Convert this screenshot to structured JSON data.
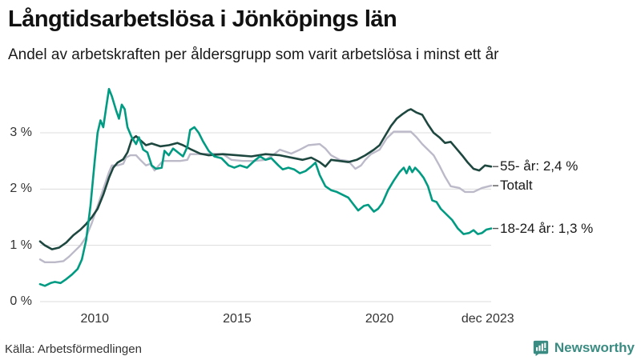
{
  "header": {
    "title": "Långtidsarbetslösa i Jönköpings län",
    "subtitle": "Andel av arbetskraften per åldersgrupp som varit arbetslösa i minst ett år"
  },
  "footer": {
    "source": "Källa: Arbetsförmedlingen",
    "brand": "Newsworthy",
    "brand_color": "#3a8c82"
  },
  "colors": {
    "grid": "#dcdcdc",
    "axis_text": "#333333",
    "label_text": "#1a1a1a",
    "background": "#ffffff"
  },
  "chart_data": {
    "type": "line",
    "title": "Långtidsarbetslösa i Jönköpings län",
    "subtitle": "Andel av arbetskraften per åldersgrupp som varit arbetslösa i minst ett år",
    "unit": "% av arbetskraften",
    "grid": true,
    "x_range": [
      2008.08,
      2023.92
    ],
    "y_range": [
      0,
      3.9
    ],
    "yticks": [
      {
        "label": "0 %",
        "value": 0
      },
      {
        "label": "1 %",
        "value": 1
      },
      {
        "label": "2 %",
        "value": 2
      },
      {
        "label": "3 %",
        "value": 3
      }
    ],
    "xticks": [
      {
        "label": "2010",
        "t": 2010
      },
      {
        "label": "2015",
        "t": 2015
      },
      {
        "label": "2020",
        "t": 2020
      },
      {
        "label": "dec 2023",
        "t": 2023.8
      }
    ],
    "series": [
      {
        "name": "Totalt",
        "end_label": "Totalt",
        "color": "#bcbac9",
        "stroke_width": 2.4,
        "points": [
          [
            2008.08,
            0.75
          ],
          [
            2008.25,
            0.7
          ],
          [
            2008.6,
            0.7
          ],
          [
            2008.9,
            0.72
          ],
          [
            2009.1,
            0.8
          ],
          [
            2009.3,
            0.9
          ],
          [
            2009.5,
            1.0
          ],
          [
            2009.7,
            1.15
          ],
          [
            2009.9,
            1.4
          ],
          [
            2010.1,
            1.7
          ],
          [
            2010.3,
            2.0
          ],
          [
            2010.5,
            2.3
          ],
          [
            2010.6,
            2.42
          ],
          [
            2010.8,
            2.42
          ],
          [
            2011.0,
            2.45
          ],
          [
            2011.1,
            2.56
          ],
          [
            2011.25,
            2.6
          ],
          [
            2011.45,
            2.6
          ],
          [
            2011.6,
            2.52
          ],
          [
            2011.8,
            2.42
          ],
          [
            2011.95,
            2.45
          ],
          [
            2012.1,
            2.33
          ],
          [
            2012.25,
            2.42
          ],
          [
            2012.4,
            2.5
          ],
          [
            2012.7,
            2.5
          ],
          [
            2013.0,
            2.5
          ],
          [
            2013.25,
            2.52
          ],
          [
            2013.35,
            2.62
          ],
          [
            2013.7,
            2.62
          ],
          [
            2014.1,
            2.63
          ],
          [
            2014.5,
            2.62
          ],
          [
            2014.8,
            2.52
          ],
          [
            2015.2,
            2.5
          ],
          [
            2015.6,
            2.5
          ],
          [
            2016.0,
            2.52
          ],
          [
            2016.3,
            2.62
          ],
          [
            2016.5,
            2.7
          ],
          [
            2016.9,
            2.63
          ],
          [
            2017.2,
            2.7
          ],
          [
            2017.5,
            2.78
          ],
          [
            2017.9,
            2.8
          ],
          [
            2018.1,
            2.72
          ],
          [
            2018.3,
            2.6
          ],
          [
            2018.6,
            2.52
          ],
          [
            2018.9,
            2.5
          ],
          [
            2019.15,
            2.36
          ],
          [
            2019.35,
            2.42
          ],
          [
            2019.5,
            2.52
          ],
          [
            2019.7,
            2.62
          ],
          [
            2020.0,
            2.7
          ],
          [
            2020.25,
            2.9
          ],
          [
            2020.5,
            3.02
          ],
          [
            2020.8,
            3.02
          ],
          [
            2021.1,
            3.02
          ],
          [
            2021.3,
            2.92
          ],
          [
            2021.5,
            2.8
          ],
          [
            2021.7,
            2.7
          ],
          [
            2021.9,
            2.6
          ],
          [
            2022.1,
            2.42
          ],
          [
            2022.3,
            2.22
          ],
          [
            2022.5,
            2.05
          ],
          [
            2022.8,
            2.02
          ],
          [
            2023.0,
            1.95
          ],
          [
            2023.3,
            1.95
          ],
          [
            2023.6,
            2.02
          ],
          [
            2023.92,
            2.06
          ]
        ]
      },
      {
        "name": "55- år",
        "end_label": "55- år: 2,4 %",
        "color": "#1d473f",
        "stroke_width": 2.6,
        "points": [
          [
            2008.08,
            1.07
          ],
          [
            2008.25,
            1.0
          ],
          [
            2008.5,
            0.93
          ],
          [
            2008.75,
            0.96
          ],
          [
            2009.0,
            1.05
          ],
          [
            2009.25,
            1.18
          ],
          [
            2009.5,
            1.28
          ],
          [
            2009.7,
            1.38
          ],
          [
            2009.9,
            1.5
          ],
          [
            2010.1,
            1.65
          ],
          [
            2010.3,
            1.9
          ],
          [
            2010.5,
            2.2
          ],
          [
            2010.65,
            2.38
          ],
          [
            2010.8,
            2.47
          ],
          [
            2011.0,
            2.53
          ],
          [
            2011.15,
            2.65
          ],
          [
            2011.3,
            2.88
          ],
          [
            2011.45,
            2.94
          ],
          [
            2011.6,
            2.87
          ],
          [
            2011.8,
            2.78
          ],
          [
            2012.0,
            2.81
          ],
          [
            2012.3,
            2.76
          ],
          [
            2012.6,
            2.78
          ],
          [
            2012.9,
            2.82
          ],
          [
            2013.1,
            2.78
          ],
          [
            2013.4,
            2.7
          ],
          [
            2013.7,
            2.63
          ],
          [
            2014.0,
            2.6
          ],
          [
            2014.5,
            2.62
          ],
          [
            2015.0,
            2.6
          ],
          [
            2015.5,
            2.58
          ],
          [
            2016.0,
            2.62
          ],
          [
            2016.5,
            2.6
          ],
          [
            2017.0,
            2.55
          ],
          [
            2017.3,
            2.52
          ],
          [
            2017.6,
            2.56
          ],
          [
            2017.9,
            2.48
          ],
          [
            2018.1,
            2.4
          ],
          [
            2018.3,
            2.52
          ],
          [
            2018.6,
            2.5
          ],
          [
            2018.9,
            2.48
          ],
          [
            2019.2,
            2.52
          ],
          [
            2019.5,
            2.6
          ],
          [
            2019.8,
            2.7
          ],
          [
            2020.0,
            2.78
          ],
          [
            2020.2,
            2.95
          ],
          [
            2020.4,
            3.12
          ],
          [
            2020.6,
            3.25
          ],
          [
            2020.8,
            3.33
          ],
          [
            2021.0,
            3.4
          ],
          [
            2021.1,
            3.42
          ],
          [
            2021.3,
            3.36
          ],
          [
            2021.5,
            3.32
          ],
          [
            2021.7,
            3.15
          ],
          [
            2021.9,
            3.0
          ],
          [
            2022.1,
            2.92
          ],
          [
            2022.3,
            2.82
          ],
          [
            2022.5,
            2.84
          ],
          [
            2022.7,
            2.72
          ],
          [
            2022.9,
            2.6
          ],
          [
            2023.1,
            2.47
          ],
          [
            2023.3,
            2.36
          ],
          [
            2023.5,
            2.33
          ],
          [
            2023.7,
            2.42
          ],
          [
            2023.92,
            2.4
          ]
        ]
      },
      {
        "name": "18-24 år",
        "end_label": "18-24 år: 1,3 %",
        "color": "#009b82",
        "stroke_width": 2.6,
        "points": [
          [
            2008.08,
            0.31
          ],
          [
            2008.25,
            0.28
          ],
          [
            2008.45,
            0.33
          ],
          [
            2008.6,
            0.35
          ],
          [
            2008.8,
            0.33
          ],
          [
            2009.0,
            0.4
          ],
          [
            2009.2,
            0.48
          ],
          [
            2009.4,
            0.58
          ],
          [
            2009.55,
            0.75
          ],
          [
            2009.7,
            1.1
          ],
          [
            2009.85,
            1.7
          ],
          [
            2010.0,
            2.5
          ],
          [
            2010.1,
            3.0
          ],
          [
            2010.2,
            3.22
          ],
          [
            2010.3,
            3.1
          ],
          [
            2010.4,
            3.45
          ],
          [
            2010.5,
            3.78
          ],
          [
            2010.6,
            3.65
          ],
          [
            2010.75,
            3.4
          ],
          [
            2010.85,
            3.25
          ],
          [
            2010.95,
            3.5
          ],
          [
            2011.05,
            3.42
          ],
          [
            2011.15,
            3.1
          ],
          [
            2011.3,
            2.92
          ],
          [
            2011.45,
            2.8
          ],
          [
            2011.55,
            2.92
          ],
          [
            2011.7,
            2.7
          ],
          [
            2011.85,
            2.65
          ],
          [
            2012.0,
            2.42
          ],
          [
            2012.15,
            2.36
          ],
          [
            2012.35,
            2.38
          ],
          [
            2012.45,
            2.68
          ],
          [
            2012.6,
            2.6
          ],
          [
            2012.75,
            2.72
          ],
          [
            2012.9,
            2.66
          ],
          [
            2013.1,
            2.58
          ],
          [
            2013.25,
            2.75
          ],
          [
            2013.35,
            3.05
          ],
          [
            2013.5,
            3.1
          ],
          [
            2013.65,
            3.0
          ],
          [
            2013.8,
            2.85
          ],
          [
            2014.0,
            2.68
          ],
          [
            2014.2,
            2.58
          ],
          [
            2014.45,
            2.55
          ],
          [
            2014.7,
            2.42
          ],
          [
            2014.9,
            2.38
          ],
          [
            2015.1,
            2.42
          ],
          [
            2015.35,
            2.38
          ],
          [
            2015.6,
            2.5
          ],
          [
            2015.8,
            2.58
          ],
          [
            2016.0,
            2.52
          ],
          [
            2016.2,
            2.55
          ],
          [
            2016.45,
            2.42
          ],
          [
            2016.6,
            2.35
          ],
          [
            2016.8,
            2.38
          ],
          [
            2017.0,
            2.35
          ],
          [
            2017.2,
            2.28
          ],
          [
            2017.4,
            2.32
          ],
          [
            2017.6,
            2.4
          ],
          [
            2017.75,
            2.47
          ],
          [
            2017.9,
            2.25
          ],
          [
            2018.1,
            2.05
          ],
          [
            2018.3,
            1.98
          ],
          [
            2018.5,
            1.95
          ],
          [
            2018.7,
            1.9
          ],
          [
            2018.9,
            1.85
          ],
          [
            2019.05,
            1.75
          ],
          [
            2019.25,
            1.62
          ],
          [
            2019.45,
            1.7
          ],
          [
            2019.6,
            1.72
          ],
          [
            2019.8,
            1.6
          ],
          [
            2019.95,
            1.65
          ],
          [
            2020.1,
            1.75
          ],
          [
            2020.3,
            1.98
          ],
          [
            2020.5,
            2.15
          ],
          [
            2020.7,
            2.3
          ],
          [
            2020.85,
            2.38
          ],
          [
            2020.95,
            2.28
          ],
          [
            2021.05,
            2.4
          ],
          [
            2021.15,
            2.3
          ],
          [
            2021.25,
            2.38
          ],
          [
            2021.4,
            2.3
          ],
          [
            2021.55,
            2.2
          ],
          [
            2021.7,
            2.05
          ],
          [
            2021.85,
            1.8
          ],
          [
            2022.0,
            1.77
          ],
          [
            2022.15,
            1.65
          ],
          [
            2022.35,
            1.55
          ],
          [
            2022.55,
            1.45
          ],
          [
            2022.75,
            1.3
          ],
          [
            2022.95,
            1.2
          ],
          [
            2023.15,
            1.22
          ],
          [
            2023.3,
            1.27
          ],
          [
            2023.45,
            1.2
          ],
          [
            2023.6,
            1.22
          ],
          [
            2023.75,
            1.28
          ],
          [
            2023.92,
            1.3
          ]
        ]
      }
    ]
  }
}
